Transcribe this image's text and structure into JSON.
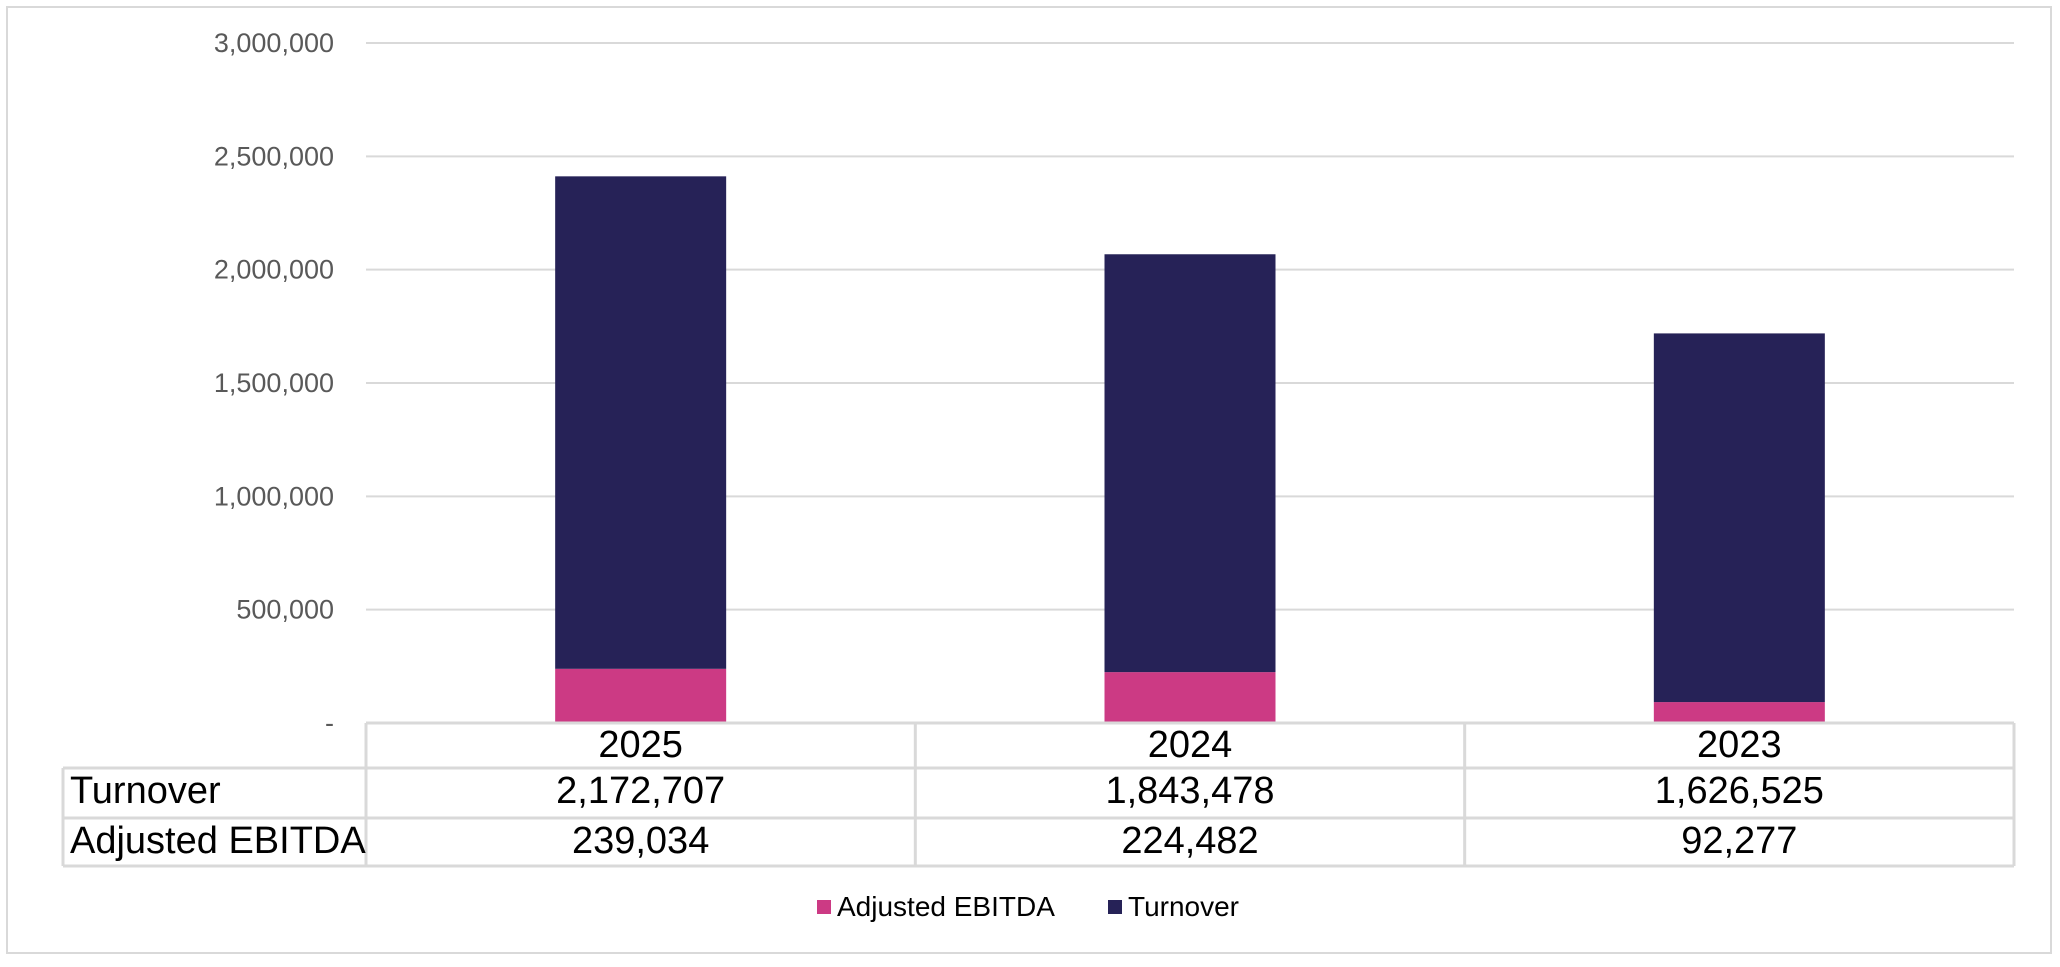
{
  "chart_data": {
    "type": "bar",
    "stacked": true,
    "categories": [
      "2025",
      "2024",
      "2023"
    ],
    "series": [
      {
        "name": "Adjusted EBITDA",
        "values": [
          239034,
          224482,
          92277
        ],
        "display": [
          "239,034",
          "224,482",
          "92,277"
        ],
        "color": "#cc3a84"
      },
      {
        "name": "Turnover",
        "values": [
          2172707,
          1843478,
          1626525
        ],
        "display": [
          "2,172,707",
          "1,843,478",
          "1,626,525"
        ],
        "color": "#262257"
      }
    ],
    "ylim": [
      0,
      3000000
    ],
    "yticks": [
      0,
      500000,
      1000000,
      1500000,
      2000000,
      2500000,
      3000000
    ],
    "ytick_labels": [
      "-",
      "500,000",
      "1,000,000",
      "1,500,000",
      "2,000,000",
      "2,500,000",
      "3,000,000"
    ],
    "data_table": {
      "rows": [
        {
          "label": "Turnover",
          "values": [
            "2,172,707",
            "1,843,478",
            "1,626,525"
          ]
        },
        {
          "label": "Adjusted EBITDA",
          "values": [
            "239,034",
            "224,482",
            "92,277"
          ]
        }
      ]
    },
    "legend": {
      "position": "bottom",
      "entries": [
        "Adjusted EBITDA",
        "Turnover"
      ]
    },
    "grid": true,
    "gridline_color": "#d9d9d9"
  }
}
